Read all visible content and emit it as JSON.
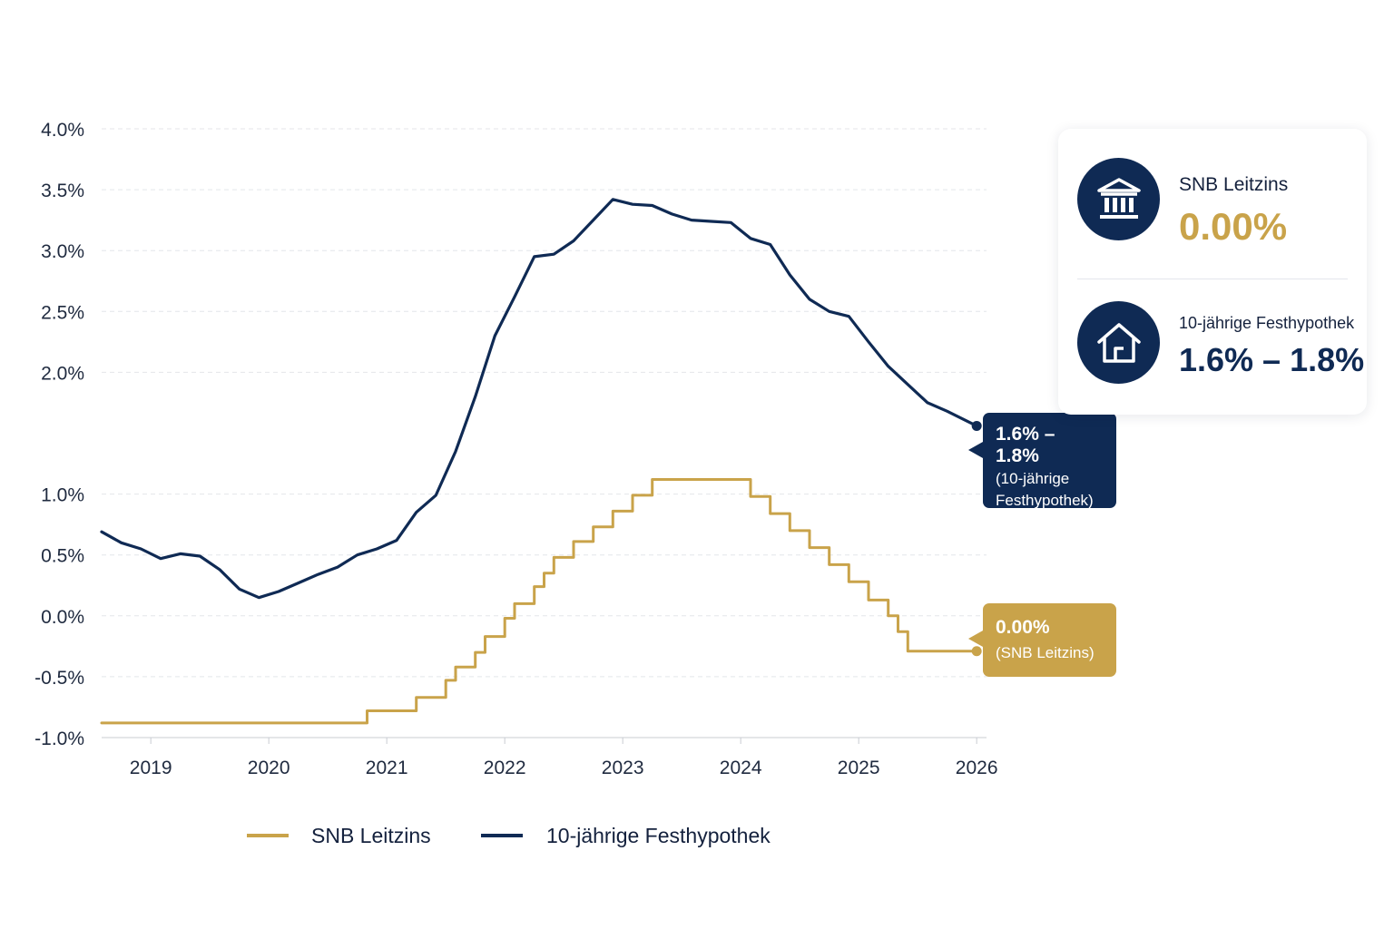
{
  "colors": {
    "navy": "#0f2a54",
    "gold": "#c9a34a",
    "grid": "#e4e6ea",
    "text": "#1f2a3f"
  },
  "chart_data": {
    "type": "line",
    "x_axis": {
      "type": "date",
      "range": [
        "2018-08",
        "2026-02"
      ],
      "ticks": [
        "2019",
        "2020",
        "2021",
        "2022",
        "2023",
        "2024",
        "2025",
        "2026"
      ]
    },
    "y_axis": {
      "range": [
        -1.0,
        4.0
      ],
      "ticks": [
        "4.0%",
        "3.5%",
        "3.0%",
        "2.5%",
        "2.0%",
        "1.0%",
        "0.5%",
        "0.0%",
        "-0.5%",
        "-1.0%"
      ]
    },
    "grid": "horizontal dashed",
    "legend": {
      "position": "bottom"
    },
    "series": [
      {
        "name": "SNB Leitzins",
        "color": "#c9a34a",
        "step": true,
        "points": [
          [
            "2018-08",
            -0.88
          ],
          [
            "2020-11",
            -0.88
          ],
          [
            "2020-11",
            -0.78
          ],
          [
            "2021-04",
            -0.78
          ],
          [
            "2021-04",
            -0.67
          ],
          [
            "2021-07",
            -0.67
          ],
          [
            "2021-07",
            -0.53
          ],
          [
            "2021-08",
            -0.53
          ],
          [
            "2021-08",
            -0.42
          ],
          [
            "2021-10",
            -0.42
          ],
          [
            "2021-10",
            -0.3
          ],
          [
            "2021-11",
            -0.3
          ],
          [
            "2021-11",
            -0.17
          ],
          [
            "2022-01",
            -0.17
          ],
          [
            "2022-01",
            -0.02
          ],
          [
            "2022-02",
            -0.02
          ],
          [
            "2022-02",
            0.1
          ],
          [
            "2022-04",
            0.1
          ],
          [
            "2022-04",
            0.24
          ],
          [
            "2022-05",
            0.24
          ],
          [
            "2022-05",
            0.35
          ],
          [
            "2022-06",
            0.35
          ],
          [
            "2022-06",
            0.48
          ],
          [
            "2022-08",
            0.48
          ],
          [
            "2022-08",
            0.61
          ],
          [
            "2022-10",
            0.61
          ],
          [
            "2022-10",
            0.73
          ],
          [
            "2022-12",
            0.73
          ],
          [
            "2022-12",
            0.86
          ],
          [
            "2023-02",
            0.86
          ],
          [
            "2023-02",
            0.99
          ],
          [
            "2023-04",
            0.99
          ],
          [
            "2023-04",
            1.12
          ],
          [
            "2024-02",
            1.12
          ],
          [
            "2024-02",
            0.98
          ],
          [
            "2024-04",
            0.98
          ],
          [
            "2024-04",
            0.84
          ],
          [
            "2024-06",
            0.84
          ],
          [
            "2024-06",
            0.7
          ],
          [
            "2024-08",
            0.7
          ],
          [
            "2024-08",
            0.56
          ],
          [
            "2024-10",
            0.56
          ],
          [
            "2024-10",
            0.42
          ],
          [
            "2024-12",
            0.42
          ],
          [
            "2024-12",
            0.28
          ],
          [
            "2025-02",
            0.28
          ],
          [
            "2025-02",
            0.13
          ],
          [
            "2025-04",
            0.13
          ],
          [
            "2025-04",
            0.0
          ],
          [
            "2025-05",
            0.0
          ],
          [
            "2025-05",
            -0.13
          ],
          [
            "2025-06",
            -0.13
          ],
          [
            "2025-06",
            -0.29
          ],
          [
            "2026-01",
            -0.29
          ]
        ]
      },
      {
        "name": "10-jährige Festhypothek",
        "color": "#0f2a54",
        "step": false,
        "points": [
          [
            "2018-08",
            0.69
          ],
          [
            "2018-10",
            0.6
          ],
          [
            "2018-12",
            0.55
          ],
          [
            "2019-02",
            0.47
          ],
          [
            "2019-04",
            0.51
          ],
          [
            "2019-06",
            0.49
          ],
          [
            "2019-08",
            0.38
          ],
          [
            "2019-10",
            0.22
          ],
          [
            "2019-12",
            0.15
          ],
          [
            "2020-02",
            0.2
          ],
          [
            "2020-04",
            0.27
          ],
          [
            "2020-06",
            0.34
          ],
          [
            "2020-08",
            0.4
          ],
          [
            "2020-10",
            0.5
          ],
          [
            "2020-12",
            0.55
          ],
          [
            "2021-02",
            0.62
          ],
          [
            "2021-04",
            0.85
          ],
          [
            "2021-06",
            0.99
          ],
          [
            "2021-08",
            1.35
          ],
          [
            "2021-10",
            1.8
          ],
          [
            "2021-12",
            2.3
          ],
          [
            "2022-02",
            2.62
          ],
          [
            "2022-04",
            2.95
          ],
          [
            "2022-06",
            2.97
          ],
          [
            "2022-08",
            3.08
          ],
          [
            "2022-10",
            3.25
          ],
          [
            "2022-12",
            3.42
          ],
          [
            "2023-02",
            3.38
          ],
          [
            "2023-04",
            3.37
          ],
          [
            "2023-06",
            3.3
          ],
          [
            "2023-08",
            3.25
          ],
          [
            "2023-10",
            3.24
          ],
          [
            "2023-12",
            3.23
          ],
          [
            "2024-02",
            3.1
          ],
          [
            "2024-04",
            3.05
          ],
          [
            "2024-06",
            2.8
          ],
          [
            "2024-08",
            2.6
          ],
          [
            "2024-10",
            2.5
          ],
          [
            "2024-12",
            2.46
          ],
          [
            "2025-02",
            2.25
          ],
          [
            "2025-04",
            2.05
          ],
          [
            "2025-06",
            1.9
          ],
          [
            "2025-08",
            1.75
          ],
          [
            "2025-10",
            1.68
          ],
          [
            "2025-12",
            1.6
          ],
          [
            "2026-01",
            1.56
          ]
        ]
      }
    ]
  },
  "callouts": {
    "mortgage": {
      "value": "1.6% – 1.8%",
      "line1": "(10-jährige",
      "line2": "Festhypothek)"
    },
    "snb": {
      "value": "0.00%",
      "line1": "(SNB Leitzins)"
    }
  },
  "info_card": {
    "snb": {
      "label": "SNB Leitzins",
      "value": "0.00%",
      "icon": "bank-building-icon"
    },
    "mortgage": {
      "label": "10-jährige Festhypothek",
      "value": "1.6% – 1.8%",
      "icon": "house-icon"
    }
  }
}
